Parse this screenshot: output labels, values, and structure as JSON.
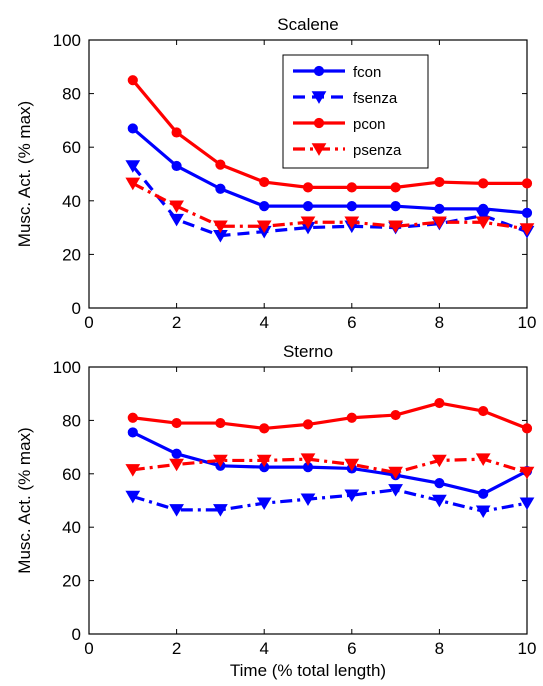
{
  "colors": {
    "f_series": "#0000ff",
    "p_series": "#ff0000",
    "axes": "#000000",
    "background": "#ffffff"
  },
  "chart_data": [
    {
      "type": "line",
      "title": "Scalene",
      "xlabel": "",
      "ylabel": "Musc. Act. (% max)",
      "xlim": [
        0,
        10
      ],
      "ylim": [
        0,
        100
      ],
      "xticks": [
        0,
        2,
        4,
        6,
        8,
        10
      ],
      "yticks": [
        0,
        20,
        40,
        60,
        80,
        100
      ],
      "grid": false,
      "legend": "top-right",
      "x": [
        1,
        2,
        3,
        4,
        5,
        6,
        7,
        8,
        9,
        10
      ],
      "series": [
        {
          "name": "fcon",
          "color": "#0000ff",
          "linestyle": "solid",
          "marker": "circle",
          "values": [
            67,
            53,
            44.5,
            38,
            38,
            38,
            38,
            37,
            37,
            35.5
          ]
        },
        {
          "name": "fsenza",
          "color": "#0000ff",
          "linestyle": "dashed",
          "marker": "triangle-down",
          "values": [
            53,
            33,
            27,
            28.5,
            30,
            30.5,
            30,
            31.5,
            34.5,
            28.5
          ]
        },
        {
          "name": "pcon",
          "color": "#ff0000",
          "linestyle": "solid",
          "marker": "circle",
          "values": [
            85,
            65.5,
            53.5,
            47,
            45,
            45,
            45,
            47,
            46.5,
            46.5
          ]
        },
        {
          "name": "psenza",
          "color": "#ff0000",
          "linestyle": "dashdot",
          "marker": "triangle-down",
          "values": [
            46.5,
            38,
            30.5,
            30.5,
            32,
            32,
            30.5,
            32,
            32,
            29.5
          ]
        }
      ]
    },
    {
      "type": "line",
      "title": "Sterno",
      "xlabel": "Time (% total length)",
      "ylabel": "Musc. Act. (% max)",
      "xlim": [
        0,
        10
      ],
      "ylim": [
        0,
        100
      ],
      "xticks": [
        0,
        2,
        4,
        6,
        8,
        10
      ],
      "yticks": [
        0,
        20,
        40,
        60,
        80,
        100
      ],
      "grid": false,
      "x": [
        1,
        2,
        3,
        4,
        5,
        6,
        7,
        8,
        9,
        10
      ],
      "series": [
        {
          "name": "fcon",
          "color": "#0000ff",
          "linestyle": "solid",
          "marker": "circle",
          "values": [
            75.5,
            67.5,
            63,
            62.5,
            62.5,
            62,
            59.5,
            56.5,
            52.5,
            61
          ]
        },
        {
          "name": "fsenza",
          "color": "#0000ff",
          "linestyle": "dashdot",
          "marker": "triangle-down",
          "values": [
            51.5,
            46.5,
            46.5,
            49,
            50.5,
            52,
            54,
            50,
            46,
            49
          ]
        },
        {
          "name": "pcon",
          "color": "#ff0000",
          "linestyle": "solid",
          "marker": "circle",
          "values": [
            81,
            79,
            79,
            77,
            78.5,
            81,
            82,
            86.5,
            83.5,
            77
          ]
        },
        {
          "name": "psenza",
          "color": "#ff0000",
          "linestyle": "dashdot",
          "marker": "triangle-down",
          "values": [
            61.5,
            63.5,
            65,
            65,
            65.5,
            63.5,
            60.5,
            65,
            65.5,
            60.5
          ]
        }
      ]
    }
  ]
}
